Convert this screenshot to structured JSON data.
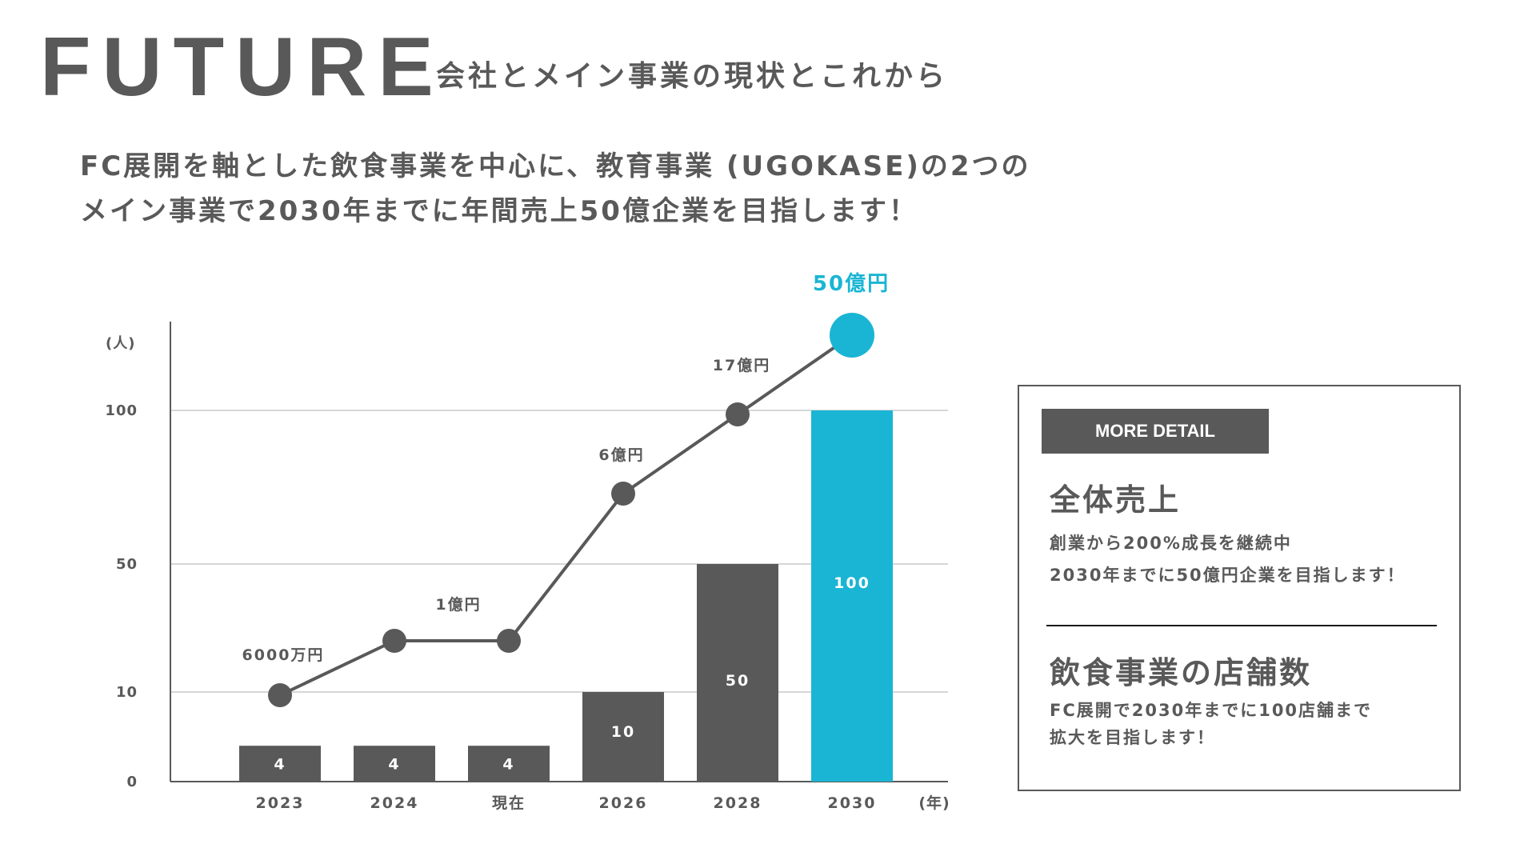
{
  "header": {
    "title": "FUTURE",
    "subtitle": "会社とメイン事業の現状とこれから"
  },
  "lead": {
    "line1": "FC展開を軸とした飲食事業を中心に、教育事業 (UGOKASE)の2つの",
    "line2": "メイン事業で2030年までに年間売上50億企業を目指します！"
  },
  "colors": {
    "gray": "#595959",
    "accent": "#1ab5d4",
    "grid": "#bfbfbf"
  },
  "chart_data": {
    "type": "bar",
    "title": "",
    "xlabel": "",
    "ylabel": "",
    "y_unit_label": "(人)",
    "x_unit_label": "(年)",
    "categories": [
      "2023",
      "2024",
      "現在",
      "2026",
      "2028",
      "2030"
    ],
    "y_ticks": [
      "0",
      "10",
      "50",
      "100"
    ],
    "grid": true,
    "series": [
      {
        "type": "bar",
        "values": [
          4,
          4,
          4,
          10,
          50,
          100
        ],
        "highlight_index": 5
      },
      {
        "type": "line",
        "values": [
          "6000万円",
          "",
          "1億円",
          "6億円",
          "17億円",
          "50億円"
        ],
        "highlight_index": 5
      }
    ]
  },
  "detail": {
    "badge": "MORE DETAIL",
    "section1": {
      "heading": "全体売上",
      "line1": "創業から200%成長を継続中",
      "line2": "2030年までに50億円企業を目指します！"
    },
    "section2": {
      "heading": "飲食事業の店舗数",
      "line1": "FC展開で2030年までに100店舗まで",
      "line2": "拡大を目指します！"
    }
  }
}
